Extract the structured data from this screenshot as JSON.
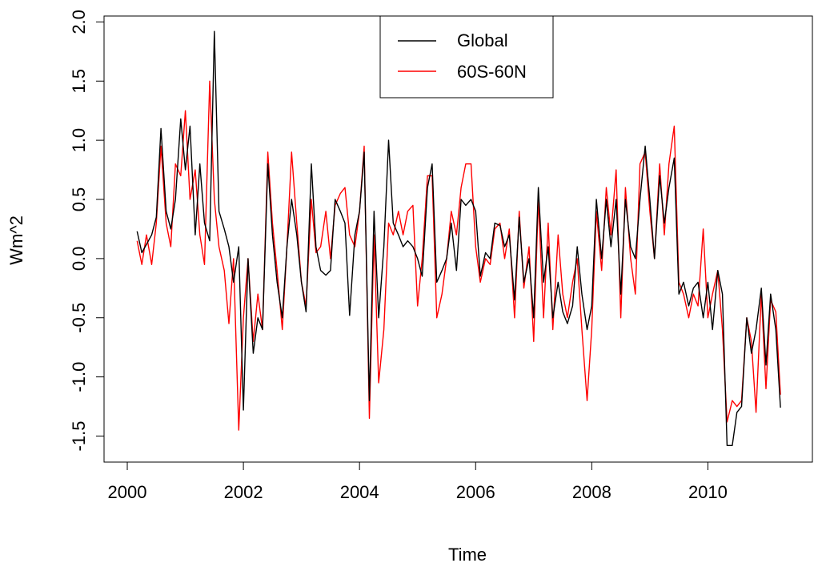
{
  "chart_data": {
    "type": "line",
    "xlabel": "Time",
    "ylabel": "Wm^2",
    "xlim": [
      1999.6,
      2011.8
    ],
    "ylim": [
      -1.72,
      2.05
    ],
    "x_ticks": [
      2000,
      2002,
      2004,
      2006,
      2008,
      2010
    ],
    "x_tick_labels": [
      "2000",
      "2002",
      "2004",
      "2006",
      "2008",
      "2010"
    ],
    "y_ticks": [
      -1.5,
      -1.0,
      -0.5,
      0.0,
      0.5,
      1.0,
      1.5,
      2.0
    ],
    "y_tick_labels": [
      "-1.5",
      "-1.0",
      "-0.5",
      "0.0",
      "0.5",
      "1.0",
      "1.5",
      "2.0"
    ],
    "legend_position": "top-center",
    "grid": false,
    "series": [
      {
        "name": "Global",
        "color": "#000000",
        "points": [
          [
            2000.17,
            0.23
          ],
          [
            2000.25,
            0.05
          ],
          [
            2000.33,
            0.12
          ],
          [
            2000.42,
            0.2
          ],
          [
            2000.5,
            0.35
          ],
          [
            2000.58,
            1.1
          ],
          [
            2000.67,
            0.4
          ],
          [
            2000.75,
            0.25
          ],
          [
            2000.83,
            0.5
          ],
          [
            2000.92,
            1.18
          ],
          [
            2001.0,
            0.75
          ],
          [
            2001.08,
            1.12
          ],
          [
            2001.17,
            0.2
          ],
          [
            2001.25,
            0.8
          ],
          [
            2001.33,
            0.3
          ],
          [
            2001.42,
            0.15
          ],
          [
            2001.5,
            1.92
          ],
          [
            2001.58,
            0.4
          ],
          [
            2001.67,
            0.25
          ],
          [
            2001.75,
            0.1
          ],
          [
            2001.83,
            -0.2
          ],
          [
            2001.92,
            0.1
          ],
          [
            2002.0,
            -1.28
          ],
          [
            2002.08,
            0.0
          ],
          [
            2002.17,
            -0.8
          ],
          [
            2002.25,
            -0.5
          ],
          [
            2002.33,
            -0.6
          ],
          [
            2002.42,
            0.8
          ],
          [
            2002.5,
            0.2
          ],
          [
            2002.58,
            -0.2
          ],
          [
            2002.67,
            -0.5
          ],
          [
            2002.75,
            0.1
          ],
          [
            2002.83,
            0.5
          ],
          [
            2002.92,
            0.2
          ],
          [
            2003.0,
            -0.2
          ],
          [
            2003.08,
            -0.45
          ],
          [
            2003.17,
            0.8
          ],
          [
            2003.25,
            0.1
          ],
          [
            2003.33,
            -0.1
          ],
          [
            2003.42,
            -0.14
          ],
          [
            2003.5,
            -0.1
          ],
          [
            2003.58,
            0.5
          ],
          [
            2003.67,
            0.4
          ],
          [
            2003.75,
            0.3
          ],
          [
            2003.83,
            -0.48
          ],
          [
            2003.92,
            0.2
          ],
          [
            2004.0,
            0.4
          ],
          [
            2004.08,
            0.9
          ],
          [
            2004.17,
            -1.2
          ],
          [
            2004.25,
            0.4
          ],
          [
            2004.33,
            -0.5
          ],
          [
            2004.42,
            0.1
          ],
          [
            2004.5,
            1.0
          ],
          [
            2004.58,
            0.3
          ],
          [
            2004.67,
            0.2
          ],
          [
            2004.75,
            0.1
          ],
          [
            2004.83,
            0.15
          ],
          [
            2004.92,
            0.1
          ],
          [
            2005.0,
            0.0
          ],
          [
            2005.08,
            -0.15
          ],
          [
            2005.17,
            0.6
          ],
          [
            2005.25,
            0.8
          ],
          [
            2005.33,
            -0.2
          ],
          [
            2005.42,
            -0.1
          ],
          [
            2005.5,
            0.0
          ],
          [
            2005.58,
            0.3
          ],
          [
            2005.67,
            -0.1
          ],
          [
            2005.75,
            0.5
          ],
          [
            2005.83,
            0.45
          ],
          [
            2005.92,
            0.5
          ],
          [
            2006.0,
            0.4
          ],
          [
            2006.08,
            -0.15
          ],
          [
            2006.17,
            0.05
          ],
          [
            2006.25,
            0.0
          ],
          [
            2006.33,
            0.3
          ],
          [
            2006.42,
            0.28
          ],
          [
            2006.5,
            0.1
          ],
          [
            2006.58,
            0.2
          ],
          [
            2006.67,
            -0.35
          ],
          [
            2006.75,
            0.35
          ],
          [
            2006.83,
            -0.2
          ],
          [
            2006.92,
            0.0
          ],
          [
            2007.0,
            -0.5
          ],
          [
            2007.08,
            0.6
          ],
          [
            2007.17,
            -0.2
          ],
          [
            2007.25,
            0.1
          ],
          [
            2007.33,
            -0.5
          ],
          [
            2007.42,
            -0.2
          ],
          [
            2007.5,
            -0.45
          ],
          [
            2007.58,
            -0.55
          ],
          [
            2007.67,
            -0.4
          ],
          [
            2007.75,
            0.1
          ],
          [
            2007.83,
            -0.3
          ],
          [
            2007.92,
            -0.6
          ],
          [
            2008.0,
            -0.4
          ],
          [
            2008.08,
            0.5
          ],
          [
            2008.17,
            0.0
          ],
          [
            2008.25,
            0.5
          ],
          [
            2008.33,
            0.1
          ],
          [
            2008.42,
            0.5
          ],
          [
            2008.5,
            -0.3
          ],
          [
            2008.58,
            0.5
          ],
          [
            2008.67,
            0.1
          ],
          [
            2008.75,
            0.0
          ],
          [
            2008.83,
            0.5
          ],
          [
            2008.92,
            0.95
          ],
          [
            2009.0,
            0.5
          ],
          [
            2009.08,
            0.0
          ],
          [
            2009.17,
            0.7
          ],
          [
            2009.25,
            0.3
          ],
          [
            2009.33,
            0.6
          ],
          [
            2009.42,
            0.85
          ],
          [
            2009.5,
            -0.3
          ],
          [
            2009.58,
            -0.2
          ],
          [
            2009.67,
            -0.4
          ],
          [
            2009.75,
            -0.25
          ],
          [
            2009.83,
            -0.2
          ],
          [
            2009.92,
            -0.5
          ],
          [
            2010.0,
            -0.2
          ],
          [
            2010.08,
            -0.6
          ],
          [
            2010.17,
            -0.1
          ],
          [
            2010.25,
            -0.3
          ],
          [
            2010.33,
            -1.58
          ],
          [
            2010.42,
            -1.58
          ],
          [
            2010.5,
            -1.3
          ],
          [
            2010.58,
            -1.25
          ],
          [
            2010.67,
            -0.5
          ],
          [
            2010.75,
            -0.8
          ],
          [
            2010.83,
            -0.6
          ],
          [
            2010.92,
            -0.25
          ],
          [
            2011.0,
            -0.9
          ],
          [
            2011.08,
            -0.3
          ],
          [
            2011.17,
            -0.6
          ],
          [
            2011.25,
            -1.26
          ]
        ]
      },
      {
        "name": "60S-60N",
        "color": "#ff0000",
        "points": [
          [
            2000.17,
            0.15
          ],
          [
            2000.25,
            -0.05
          ],
          [
            2000.33,
            0.2
          ],
          [
            2000.42,
            -0.05
          ],
          [
            2000.5,
            0.3
          ],
          [
            2000.58,
            0.95
          ],
          [
            2000.67,
            0.3
          ],
          [
            2000.75,
            0.1
          ],
          [
            2000.83,
            0.8
          ],
          [
            2000.92,
            0.7
          ],
          [
            2001.0,
            1.25
          ],
          [
            2001.08,
            0.5
          ],
          [
            2001.17,
            0.75
          ],
          [
            2001.25,
            0.2
          ],
          [
            2001.33,
            -0.05
          ],
          [
            2001.42,
            1.5
          ],
          [
            2001.5,
            0.5
          ],
          [
            2001.58,
            0.1
          ],
          [
            2001.67,
            -0.1
          ],
          [
            2001.75,
            -0.55
          ],
          [
            2001.83,
            0.0
          ],
          [
            2001.92,
            -1.45
          ],
          [
            2002.0,
            -0.5
          ],
          [
            2002.08,
            0.0
          ],
          [
            2002.17,
            -0.7
          ],
          [
            2002.25,
            -0.3
          ],
          [
            2002.33,
            -0.6
          ],
          [
            2002.42,
            0.9
          ],
          [
            2002.5,
            0.3
          ],
          [
            2002.58,
            -0.1
          ],
          [
            2002.67,
            -0.6
          ],
          [
            2002.75,
            0.1
          ],
          [
            2002.83,
            0.9
          ],
          [
            2002.92,
            0.3
          ],
          [
            2003.0,
            -0.2
          ],
          [
            2003.08,
            -0.4
          ],
          [
            2003.17,
            0.5
          ],
          [
            2003.25,
            0.05
          ],
          [
            2003.33,
            0.1
          ],
          [
            2003.42,
            0.4
          ],
          [
            2003.5,
            0.0
          ],
          [
            2003.58,
            0.45
          ],
          [
            2003.67,
            0.55
          ],
          [
            2003.75,
            0.6
          ],
          [
            2003.83,
            0.2
          ],
          [
            2003.92,
            0.1
          ],
          [
            2004.0,
            0.4
          ],
          [
            2004.08,
            0.95
          ],
          [
            2004.17,
            -1.35
          ],
          [
            2004.25,
            0.2
          ],
          [
            2004.33,
            -1.05
          ],
          [
            2004.42,
            -0.6
          ],
          [
            2004.5,
            0.3
          ],
          [
            2004.58,
            0.2
          ],
          [
            2004.67,
            0.4
          ],
          [
            2004.75,
            0.2
          ],
          [
            2004.83,
            0.4
          ],
          [
            2004.92,
            0.45
          ],
          [
            2005.0,
            -0.4
          ],
          [
            2005.08,
            0.0
          ],
          [
            2005.17,
            0.7
          ],
          [
            2005.25,
            0.7
          ],
          [
            2005.33,
            -0.5
          ],
          [
            2005.42,
            -0.3
          ],
          [
            2005.5,
            0.0
          ],
          [
            2005.58,
            0.4
          ],
          [
            2005.67,
            0.2
          ],
          [
            2005.75,
            0.6
          ],
          [
            2005.83,
            0.8
          ],
          [
            2005.92,
            0.8
          ],
          [
            2006.0,
            0.1
          ],
          [
            2006.08,
            -0.2
          ],
          [
            2006.17,
            0.0
          ],
          [
            2006.25,
            -0.05
          ],
          [
            2006.33,
            0.25
          ],
          [
            2006.42,
            0.3
          ],
          [
            2006.5,
            0.0
          ],
          [
            2006.58,
            0.25
          ],
          [
            2006.67,
            -0.5
          ],
          [
            2006.75,
            0.4
          ],
          [
            2006.83,
            -0.25
          ],
          [
            2006.92,
            0.1
          ],
          [
            2007.0,
            -0.7
          ],
          [
            2007.08,
            0.5
          ],
          [
            2007.17,
            -0.5
          ],
          [
            2007.25,
            0.3
          ],
          [
            2007.33,
            -0.6
          ],
          [
            2007.42,
            0.2
          ],
          [
            2007.5,
            -0.3
          ],
          [
            2007.58,
            -0.5
          ],
          [
            2007.67,
            -0.2
          ],
          [
            2007.75,
            0.0
          ],
          [
            2007.83,
            -0.6
          ],
          [
            2007.92,
            -1.2
          ],
          [
            2008.0,
            -0.6
          ],
          [
            2008.08,
            0.4
          ],
          [
            2008.17,
            -0.1
          ],
          [
            2008.25,
            0.6
          ],
          [
            2008.33,
            0.2
          ],
          [
            2008.42,
            0.75
          ],
          [
            2008.5,
            -0.5
          ],
          [
            2008.58,
            0.6
          ],
          [
            2008.67,
            0.0
          ],
          [
            2008.75,
            -0.3
          ],
          [
            2008.83,
            0.8
          ],
          [
            2008.92,
            0.9
          ],
          [
            2009.0,
            0.4
          ],
          [
            2009.08,
            0.0
          ],
          [
            2009.17,
            0.8
          ],
          [
            2009.25,
            0.2
          ],
          [
            2009.33,
            0.8
          ],
          [
            2009.42,
            1.12
          ],
          [
            2009.5,
            -0.2
          ],
          [
            2009.58,
            -0.3
          ],
          [
            2009.67,
            -0.5
          ],
          [
            2009.75,
            -0.3
          ],
          [
            2009.83,
            -0.4
          ],
          [
            2009.92,
            0.25
          ],
          [
            2010.0,
            -0.5
          ],
          [
            2010.08,
            -0.3
          ],
          [
            2010.17,
            -0.1
          ],
          [
            2010.25,
            -0.6
          ],
          [
            2010.33,
            -1.38
          ],
          [
            2010.42,
            -1.2
          ],
          [
            2010.5,
            -1.25
          ],
          [
            2010.58,
            -1.2
          ],
          [
            2010.67,
            -0.5
          ],
          [
            2010.75,
            -0.7
          ],
          [
            2010.83,
            -1.3
          ],
          [
            2010.92,
            -0.3
          ],
          [
            2011.0,
            -1.1
          ],
          [
            2011.08,
            -0.35
          ],
          [
            2011.17,
            -0.45
          ],
          [
            2011.25,
            -1.15
          ]
        ]
      }
    ]
  }
}
